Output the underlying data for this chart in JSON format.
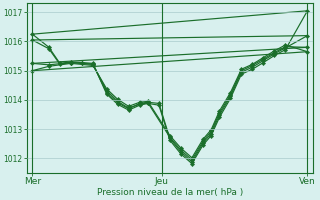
{
  "background_color": "#d8f0ee",
  "grid_color": "#aacccc",
  "line_color": "#1a6e2a",
  "xlabel": "Pression niveau de la mer( hPa )",
  "xlabel_color": "#1a6e2a",
  "xtick_labels": [
    "Mer",
    "Jeu",
    "Ven"
  ],
  "xtick_positions": [
    0.0,
    0.47,
    1.0
  ],
  "ytick_labels": [
    "1012",
    "1013",
    "1014",
    "1015",
    "1016",
    "1017"
  ],
  "ylim": [
    1011.5,
    1017.3
  ],
  "xlim": [
    -0.02,
    1.02
  ],
  "straight_lines": [
    [
      [
        0.0,
        1.0
      ],
      [
        1016.25,
        1017.05
      ]
    ],
    [
      [
        0.0,
        1.0
      ],
      [
        1016.05,
        1016.2
      ]
    ],
    [
      [
        0.0,
        1.0
      ],
      [
        1015.25,
        1015.8
      ]
    ],
    [
      [
        0.0,
        1.0
      ],
      [
        1015.0,
        1015.65
      ]
    ]
  ],
  "curved_series": [
    {
      "x": [
        0.0,
        0.06,
        0.1,
        0.14,
        0.18,
        0.22,
        0.27,
        0.31,
        0.35,
        0.39,
        0.42,
        0.46,
        0.5,
        0.54,
        0.58,
        0.62,
        0.65,
        0.68,
        0.72,
        0.76,
        0.8,
        0.84,
        0.88,
        0.92,
        1.0
      ],
      "y": [
        1016.25,
        1015.8,
        1015.25,
        1015.3,
        1015.28,
        1015.25,
        1014.2,
        1013.85,
        1013.65,
        1013.82,
        1013.88,
        1013.82,
        1012.62,
        1012.15,
        1011.82,
        1012.45,
        1012.78,
        1013.4,
        1014.05,
        1014.88,
        1015.05,
        1015.28,
        1015.52,
        1015.72,
        1017.05
      ]
    },
    {
      "x": [
        0.0,
        0.06,
        0.1,
        0.14,
        0.18,
        0.22,
        0.27,
        0.31,
        0.35,
        0.39,
        0.42,
        0.46,
        0.5,
        0.54,
        0.58,
        0.62,
        0.65,
        0.68,
        0.72,
        0.76,
        0.8,
        0.84,
        0.88,
        0.92,
        1.0
      ],
      "y": [
        1016.05,
        1015.75,
        1015.22,
        1015.28,
        1015.25,
        1015.22,
        1014.25,
        1013.9,
        1013.7,
        1013.88,
        1013.92,
        1013.88,
        1012.68,
        1012.22,
        1011.88,
        1012.52,
        1012.85,
        1013.48,
        1014.12,
        1014.95,
        1015.12,
        1015.35,
        1015.58,
        1015.78,
        1016.2
      ]
    },
    {
      "x": [
        0.0,
        0.06,
        0.14,
        0.22,
        0.27,
        0.31,
        0.35,
        0.39,
        0.42,
        0.5,
        0.54,
        0.58,
        0.62,
        0.65,
        0.68,
        0.72,
        0.76,
        0.8,
        0.84,
        0.88,
        0.92,
        1.0
      ],
      "y": [
        1015.25,
        1015.2,
        1015.28,
        1015.22,
        1014.32,
        1013.95,
        1013.72,
        1013.85,
        1013.9,
        1012.72,
        1012.28,
        1011.95,
        1012.58,
        1012.92,
        1013.55,
        1014.18,
        1015.0,
        1015.18,
        1015.4,
        1015.62,
        1015.82,
        1015.8
      ]
    },
    {
      "x": [
        0.0,
        0.06,
        0.14,
        0.22,
        0.27,
        0.31,
        0.35,
        0.39,
        0.42,
        0.5,
        0.54,
        0.58,
        0.62,
        0.65,
        0.68,
        0.72,
        0.76,
        0.8,
        0.84,
        0.88,
        0.92,
        1.0
      ],
      "y": [
        1015.0,
        1015.15,
        1015.25,
        1015.18,
        1014.38,
        1014.02,
        1013.78,
        1013.92,
        1013.95,
        1012.78,
        1012.35,
        1012.02,
        1012.65,
        1012.98,
        1013.62,
        1014.25,
        1015.05,
        1015.22,
        1015.45,
        1015.68,
        1015.88,
        1015.65
      ]
    }
  ],
  "marker": "D",
  "markersize": 2.2,
  "linewidth": 0.85
}
